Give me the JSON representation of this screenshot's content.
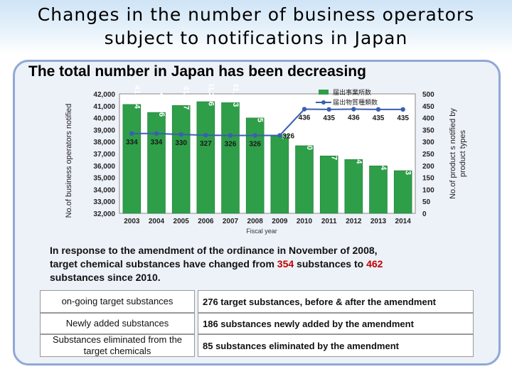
{
  "title": "Changes in the number of business operators subject to notifications in Japan",
  "subtitle": "The total number in Japan has been decreasing",
  "chart_data": {
    "type": "bar",
    "x": [
      "2003",
      "2004",
      "2005",
      "2006",
      "2007",
      "2008",
      "2009",
      "2010",
      "2011",
      "2012",
      "2013",
      "2014"
    ],
    "xlabel": "Fiscal year",
    "ylabel_left": "No.of business operators notified",
    "ylabel_right": "No.of product s notified by product types",
    "ylim_left": [
      32000,
      42000
    ],
    "ylim_right": [
      0,
      500
    ],
    "yticks_left": [
      "42,000",
      "41,000",
      "40,000",
      "39,000",
      "38,000",
      "37,000",
      "36,000",
      "35,000",
      "34,000",
      "33,000",
      "32,000"
    ],
    "yticks_right": [
      "500",
      "450",
      "400",
      "350",
      "300",
      "250",
      "200",
      "150",
      "100",
      "50",
      "0"
    ],
    "legend": [
      "届出事業所数",
      "届出物質種類数"
    ],
    "legend_placement": "top-right",
    "series": [
      {
        "name": "届出事業所数",
        "type": "bar",
        "color": "#2e9e49",
        "values": [
          41114,
          40446,
          41027,
          41346,
          41263,
          39985,
          38561,
          37660,
          36807,
          36504,
          35974,
          35573
        ],
        "labels": [
          "41,114",
          "40,446",
          "41,027",
          "41,346",
          "41,263",
          "39,985",
          "38,561",
          "37,660",
          "36,807",
          "36,504",
          "35,974",
          "35,573"
        ]
      },
      {
        "name": "届出物質種類数",
        "type": "line",
        "color": "#3a5fb0",
        "values": [
          334,
          334,
          330,
          327,
          326,
          326,
          326,
          436,
          435,
          436,
          435,
          435
        ],
        "labels": [
          "334",
          "334",
          "330",
          "327",
          "326",
          "326",
          "326",
          "436",
          "435",
          "436",
          "435",
          "435"
        ]
      }
    ]
  },
  "description": {
    "line1": "In response to the amendment of the ordinance in November of 2008,",
    "line2a": "target chemical substances have changed from ",
    "from": "354",
    "line2b": " substances to ",
    "to": "462",
    "line3": "substances since 2010."
  },
  "table": [
    {
      "label": "on-going target substances",
      "value": "276 target substances, before & after the amendment"
    },
    {
      "label": "Newly added substances",
      "value": "186 substances newly added by the amendment"
    },
    {
      "label": "Substances eliminated from the target chemicals",
      "value": "85 substances eliminated by the amendment"
    }
  ],
  "colors": {
    "accent": "#c00000",
    "bar": "#2e9e49",
    "line": "#3a5fb0"
  }
}
